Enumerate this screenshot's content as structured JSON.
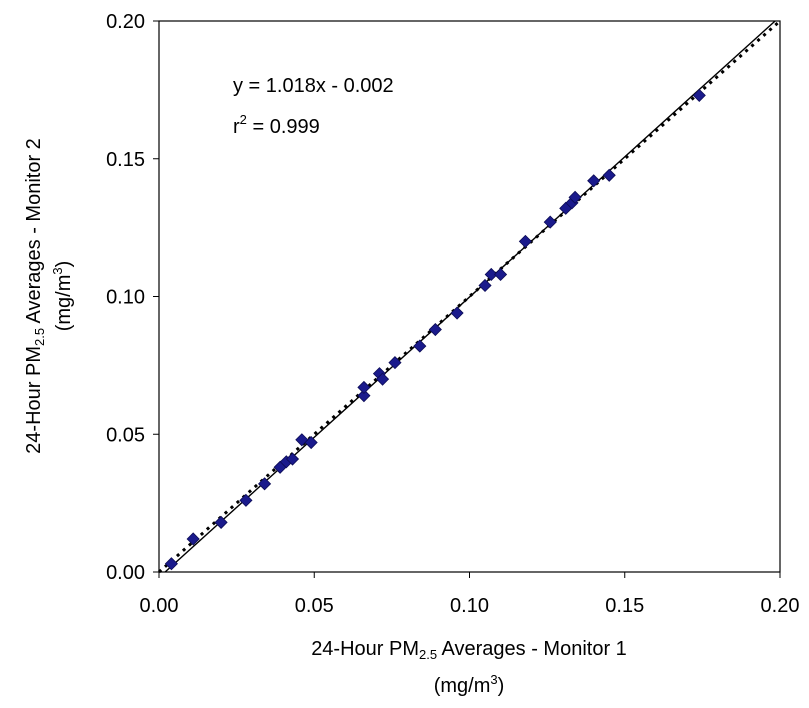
{
  "chart_data": {
    "type": "scatter",
    "xlabel": {
      "prefix": "24-Hour PM",
      "subscript": "2.5",
      "suffix": " Averages - Monitor 1",
      "unit_prefix": "(mg/m",
      "unit_superscript": "3",
      "unit_suffix": ")"
    },
    "ylabel": {
      "prefix": "24-Hour PM",
      "subscript": "2.5",
      "suffix": " Averages - Monitor 2",
      "unit_prefix": "(mg/m",
      "unit_superscript": "3",
      "unit_suffix": ")"
    },
    "xlim": [
      0,
      0.2
    ],
    "ylim": [
      0,
      0.2
    ],
    "xticks": [
      "0.00",
      "0.05",
      "0.10",
      "0.15",
      "0.20"
    ],
    "yticks": [
      "0.00",
      "0.05",
      "0.10",
      "0.15",
      "0.20"
    ],
    "grid": false,
    "legend": "none",
    "annotation": {
      "equation": "y = 1.018x - 0.002",
      "r_prefix": "r",
      "r_superscript": "2",
      "r_suffix": " = 0.999"
    },
    "marker_color": "#1a1a8c",
    "series": [
      {
        "points": [
          [
            0.004,
            0.003
          ],
          [
            0.011,
            0.012
          ],
          [
            0.02,
            0.018
          ],
          [
            0.028,
            0.026
          ],
          [
            0.034,
            0.032
          ],
          [
            0.039,
            0.038
          ],
          [
            0.041,
            0.04
          ],
          [
            0.043,
            0.041
          ],
          [
            0.046,
            0.048
          ],
          [
            0.049,
            0.047
          ],
          [
            0.066,
            0.064
          ],
          [
            0.066,
            0.067
          ],
          [
            0.071,
            0.072
          ],
          [
            0.072,
            0.07
          ],
          [
            0.076,
            0.076
          ],
          [
            0.084,
            0.082
          ],
          [
            0.089,
            0.088
          ],
          [
            0.096,
            0.094
          ],
          [
            0.105,
            0.104
          ],
          [
            0.107,
            0.108
          ],
          [
            0.11,
            0.108
          ],
          [
            0.118,
            0.12
          ],
          [
            0.126,
            0.127
          ],
          [
            0.131,
            0.132
          ],
          [
            0.133,
            0.134
          ],
          [
            0.134,
            0.136
          ],
          [
            0.14,
            0.142
          ],
          [
            0.145,
            0.144
          ],
          [
            0.174,
            0.173
          ]
        ]
      }
    ],
    "lines": [
      {
        "kind": "regression",
        "slope": 1.018,
        "intercept": -0.002,
        "style": "solid"
      },
      {
        "kind": "one-to-one",
        "slope": 1,
        "intercept": 0,
        "style": "dotted"
      }
    ]
  }
}
